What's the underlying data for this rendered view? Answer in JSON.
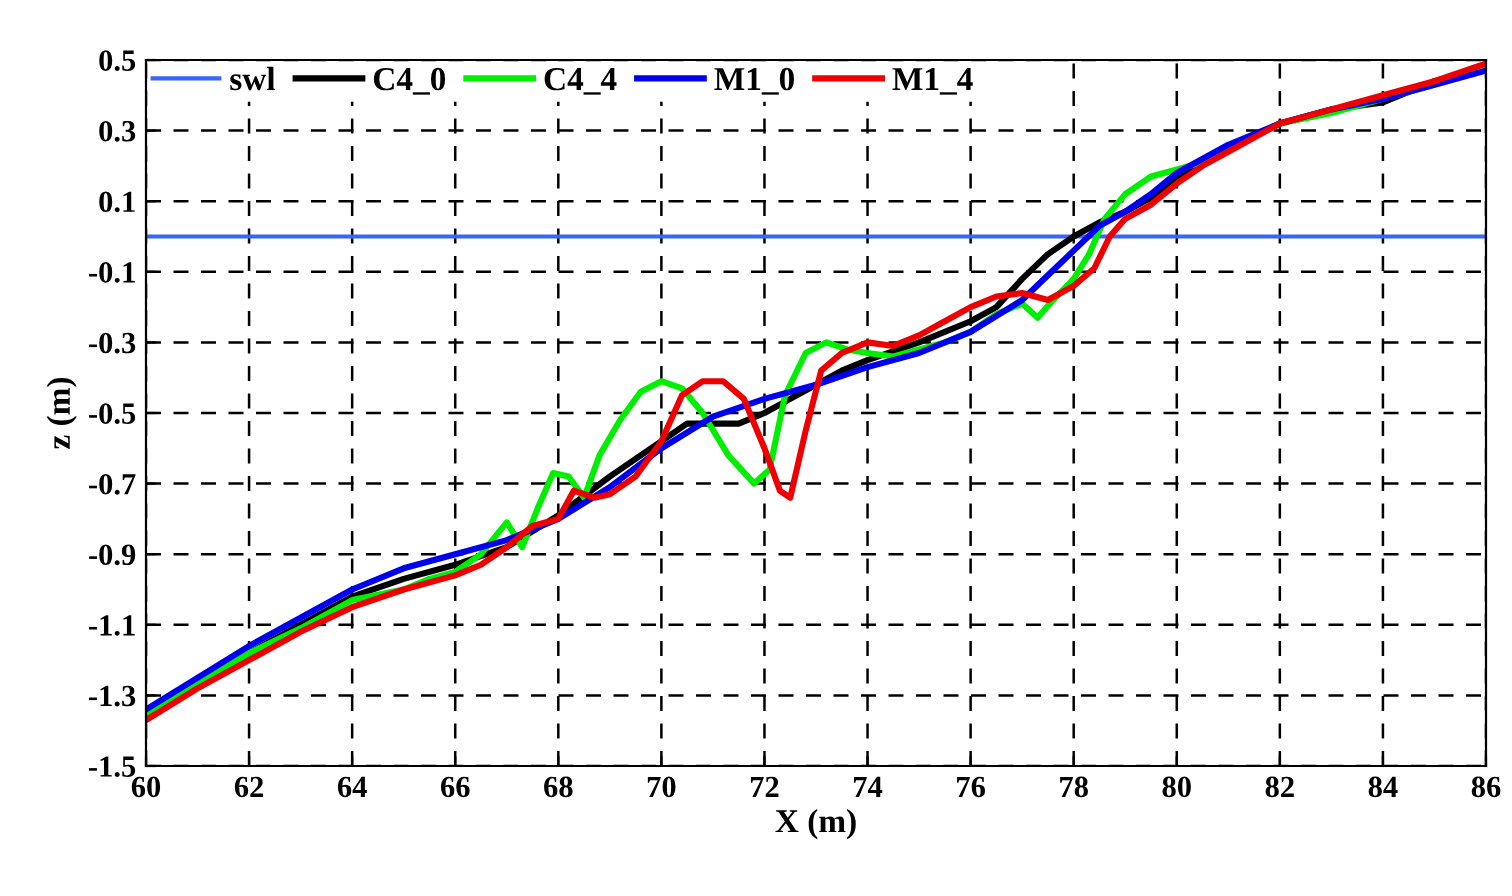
{
  "chart_data": {
    "type": "line",
    "xlabel": "X (m)",
    "ylabel": "z (m)",
    "xlim": [
      60,
      86
    ],
    "ylim": [
      -1.5,
      0.5
    ],
    "xticks": [
      60,
      62,
      64,
      66,
      68,
      70,
      72,
      74,
      76,
      78,
      80,
      82,
      84,
      86
    ],
    "yticks": [
      -1.5,
      -1.3,
      -1.1,
      -0.9,
      -0.7,
      -0.5,
      -0.3,
      -0.1,
      0.1,
      0.3,
      0.5
    ],
    "grid": true,
    "legend": "top left",
    "marker": "none",
    "line_style": "solid",
    "series": [
      {
        "name": "swl",
        "color": "#3366ff",
        "x": [
          60,
          86
        ],
        "values": [
          0,
          0
        ]
      },
      {
        "name": "C4_0",
        "color": "#000000",
        "x": [
          60,
          61,
          62,
          63,
          64,
          65,
          66,
          67,
          68,
          69,
          70,
          70.5,
          71,
          71.5,
          72,
          72.5,
          73,
          73.5,
          74,
          75,
          76,
          76.5,
          77,
          77.5,
          78,
          78.5,
          79,
          79.5,
          80,
          81,
          82,
          83,
          84,
          85,
          86
        ],
        "values": [
          -1.35,
          -1.27,
          -1.18,
          -1.1,
          -1.02,
          -0.97,
          -0.93,
          -0.88,
          -0.79,
          -0.68,
          -0.58,
          -0.53,
          -0.53,
          -0.53,
          -0.5,
          -0.46,
          -0.42,
          -0.38,
          -0.35,
          -0.3,
          -0.24,
          -0.2,
          -0.12,
          -0.05,
          0.0,
          0.04,
          0.07,
          0.11,
          0.17,
          0.25,
          0.32,
          0.36,
          0.38,
          0.44,
          0.48
        ]
      },
      {
        "name": "C4_4",
        "color": "#00ee00",
        "x": [
          60,
          61,
          62,
          63,
          64,
          65,
          65.5,
          66,
          66.5,
          67,
          67.3,
          67.6,
          67.9,
          68.2,
          68.5,
          68.8,
          69.2,
          69.6,
          70,
          70.4,
          70.8,
          71.3,
          71.8,
          72.1,
          72.4,
          72.8,
          73.2,
          73.6,
          74,
          74.5,
          75,
          75.5,
          76,
          76.5,
          77,
          77.3,
          77.6,
          78,
          78.3,
          78.6,
          79,
          79.5,
          80,
          80.5,
          81,
          82,
          83,
          84,
          85,
          86
        ],
        "values": [
          -1.35,
          -1.27,
          -1.18,
          -1.11,
          -1.03,
          -1.0,
          -0.97,
          -0.95,
          -0.9,
          -0.81,
          -0.88,
          -0.77,
          -0.67,
          -0.68,
          -0.74,
          -0.62,
          -0.52,
          -0.44,
          -0.41,
          -0.43,
          -0.5,
          -0.62,
          -0.7,
          -0.66,
          -0.45,
          -0.33,
          -0.3,
          -0.32,
          -0.33,
          -0.34,
          -0.32,
          -0.3,
          -0.27,
          -0.22,
          -0.19,
          -0.23,
          -0.18,
          -0.12,
          -0.05,
          0.05,
          0.12,
          0.17,
          0.19,
          0.21,
          0.25,
          0.32,
          0.35,
          0.39,
          0.43,
          0.48
        ]
      },
      {
        "name": "M1_0",
        "color": "#0000ee",
        "x": [
          60,
          61,
          62,
          63,
          64,
          65,
          66,
          67,
          68,
          69,
          70,
          71,
          72,
          73,
          74,
          75,
          76,
          77,
          77.5,
          78,
          78.5,
          79,
          79.5,
          80,
          81,
          82,
          83,
          84,
          85,
          86
        ],
        "values": [
          -1.34,
          -1.25,
          -1.16,
          -1.08,
          -1.0,
          -0.94,
          -0.9,
          -0.86,
          -0.8,
          -0.71,
          -0.6,
          -0.51,
          -0.46,
          -0.42,
          -0.37,
          -0.33,
          -0.27,
          -0.18,
          -0.11,
          -0.04,
          0.03,
          0.07,
          0.12,
          0.18,
          0.26,
          0.32,
          0.36,
          0.39,
          0.43,
          0.47
        ]
      },
      {
        "name": "M1_4",
        "color": "#ee0000",
        "x": [
          60,
          61,
          62,
          63,
          64,
          65,
          66,
          66.5,
          67,
          67.5,
          68,
          68.3,
          68.7,
          69,
          69.5,
          70,
          70.4,
          70.8,
          71.2,
          71.6,
          72,
          72.3,
          72.5,
          72.8,
          73.1,
          73.5,
          74,
          74.5,
          75,
          75.5,
          76,
          76.5,
          77,
          77.5,
          78,
          78.4,
          78.7,
          79,
          79.5,
          80,
          80.5,
          81,
          82,
          83,
          84,
          85,
          86
        ],
        "values": [
          -1.37,
          -1.28,
          -1.2,
          -1.12,
          -1.05,
          -1.0,
          -0.96,
          -0.93,
          -0.88,
          -0.82,
          -0.8,
          -0.72,
          -0.74,
          -0.73,
          -0.68,
          -0.58,
          -0.45,
          -0.41,
          -0.41,
          -0.46,
          -0.6,
          -0.72,
          -0.74,
          -0.55,
          -0.38,
          -0.33,
          -0.3,
          -0.31,
          -0.28,
          -0.24,
          -0.2,
          -0.17,
          -0.16,
          -0.18,
          -0.14,
          -0.09,
          0.0,
          0.05,
          0.09,
          0.15,
          0.2,
          0.24,
          0.32,
          0.36,
          0.4,
          0.44,
          0.49
        ]
      }
    ]
  }
}
